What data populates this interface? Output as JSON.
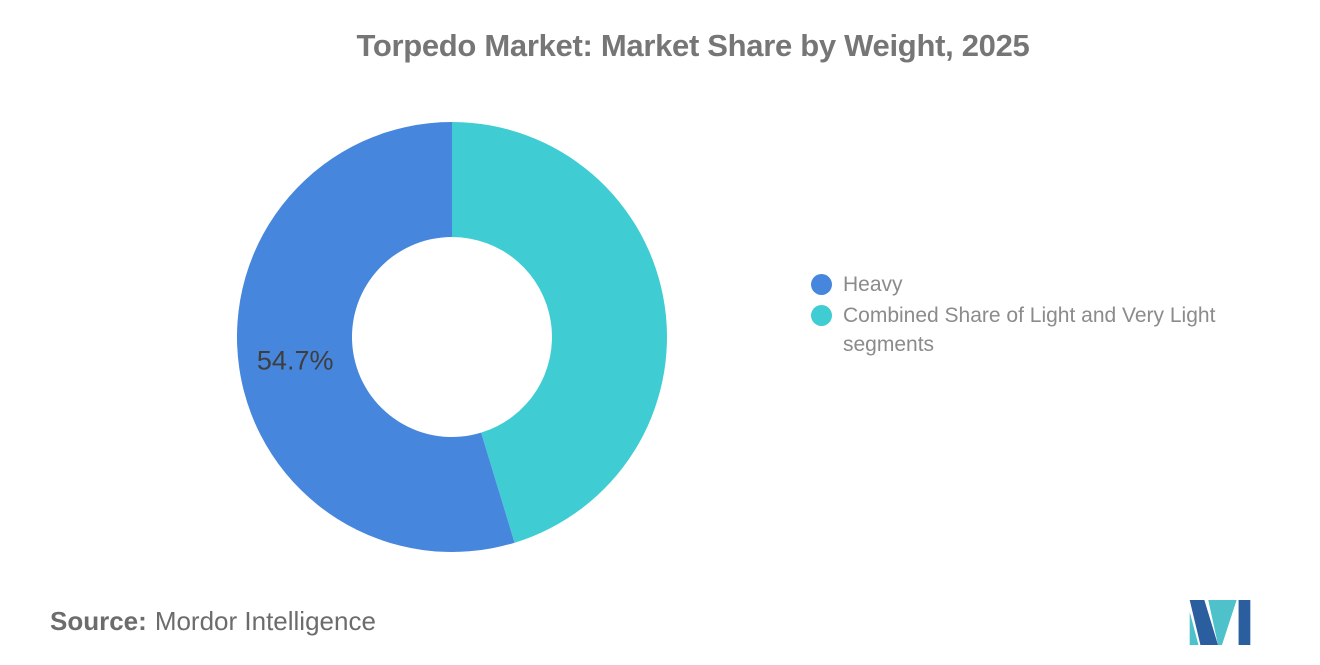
{
  "title": "Torpedo Market: Market Share by Weight, 2025",
  "chart_data": {
    "type": "pie",
    "variant": "donut",
    "title": "Torpedo Market: Market Share by Weight, 2025",
    "legend_position": "right",
    "start_angle": "top",
    "direction": "counterclockwise",
    "value_label_color": "#3e3e3e",
    "slices": [
      {
        "name": "Heavy",
        "value": 54.7,
        "label": "54.7%",
        "color": "#4786DD"
      },
      {
        "name": "Combined Share of Light and Very Light segments",
        "value": 45.3,
        "label": "",
        "color": "#3FCDD3"
      }
    ]
  },
  "source": {
    "prefix": "Source:",
    "text": "Mordor Intelligence"
  },
  "logo": {
    "icon": "mordor-intelligence-logo",
    "blue": "#2A5E9E",
    "teal": "#4EC1CA"
  }
}
